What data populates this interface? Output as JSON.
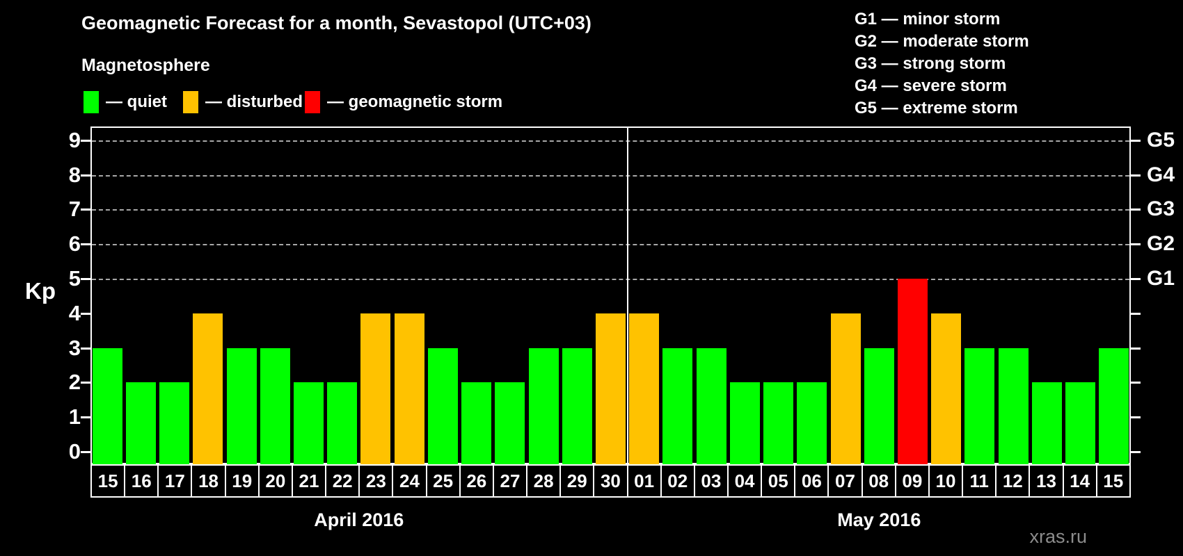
{
  "title": "Geomagnetic Forecast for a month, Sevastopol (UTC+03)",
  "subtitle": "Magnetosphere",
  "legend": {
    "items": [
      {
        "name": "quiet",
        "label": "— quiet",
        "color": "#00FF00"
      },
      {
        "name": "disturbed",
        "label": "— disturbed",
        "color": "#FFC200"
      },
      {
        "name": "geomagnetic-storm",
        "label": "— geomagnetic storm",
        "color": "#FF0000"
      }
    ]
  },
  "g_scale_legend": [
    "G1 — minor storm",
    "G2 — moderate storm",
    "G3 — strong storm",
    "G4 — severe storm",
    "G5 — extreme storm"
  ],
  "watermark": "xras.ru",
  "chart_data": {
    "type": "bar",
    "ylabel": "Kp",
    "ylim": [
      0,
      9
    ],
    "yticks": [
      0,
      1,
      2,
      3,
      4,
      5,
      6,
      7,
      8,
      9
    ],
    "grid_levels": [
      5,
      6,
      7,
      8,
      9
    ],
    "grid_style": "dashed",
    "right_axis": [
      {
        "kp": 5,
        "label": "G1"
      },
      {
        "kp": 6,
        "label": "G2"
      },
      {
        "kp": 7,
        "label": "G3"
      },
      {
        "kp": 8,
        "label": "G4"
      },
      {
        "kp": 9,
        "label": "G5"
      }
    ],
    "colors": {
      "quiet": "#00FF00",
      "disturbed": "#FFC200",
      "storm": "#FF0000"
    },
    "months": [
      {
        "label": "April 2016",
        "days": [
          {
            "date": "15",
            "kp": 3,
            "status": "quiet"
          },
          {
            "date": "16",
            "kp": 2,
            "status": "quiet"
          },
          {
            "date": "17",
            "kp": 2,
            "status": "quiet"
          },
          {
            "date": "18",
            "kp": 4,
            "status": "disturbed"
          },
          {
            "date": "19",
            "kp": 3,
            "status": "quiet"
          },
          {
            "date": "20",
            "kp": 3,
            "status": "quiet"
          },
          {
            "date": "21",
            "kp": 2,
            "status": "quiet"
          },
          {
            "date": "22",
            "kp": 2,
            "status": "quiet"
          },
          {
            "date": "23",
            "kp": 4,
            "status": "disturbed"
          },
          {
            "date": "24",
            "kp": 4,
            "status": "disturbed"
          },
          {
            "date": "25",
            "kp": 3,
            "status": "quiet"
          },
          {
            "date": "26",
            "kp": 2,
            "status": "quiet"
          },
          {
            "date": "27",
            "kp": 2,
            "status": "quiet"
          },
          {
            "date": "28",
            "kp": 3,
            "status": "quiet"
          },
          {
            "date": "29",
            "kp": 3,
            "status": "quiet"
          },
          {
            "date": "30",
            "kp": 4,
            "status": "disturbed"
          }
        ]
      },
      {
        "label": "May 2016",
        "days": [
          {
            "date": "01",
            "kp": 4,
            "status": "disturbed"
          },
          {
            "date": "02",
            "kp": 3,
            "status": "quiet"
          },
          {
            "date": "03",
            "kp": 3,
            "status": "quiet"
          },
          {
            "date": "04",
            "kp": 2,
            "status": "quiet"
          },
          {
            "date": "05",
            "kp": 2,
            "status": "quiet"
          },
          {
            "date": "06",
            "kp": 2,
            "status": "quiet"
          },
          {
            "date": "07",
            "kp": 4,
            "status": "disturbed"
          },
          {
            "date": "08",
            "kp": 3,
            "status": "quiet"
          },
          {
            "date": "09",
            "kp": 5,
            "status": "storm"
          },
          {
            "date": "10",
            "kp": 4,
            "status": "disturbed"
          },
          {
            "date": "11",
            "kp": 3,
            "status": "quiet"
          },
          {
            "date": "12",
            "kp": 3,
            "status": "quiet"
          },
          {
            "date": "13",
            "kp": 2,
            "status": "quiet"
          },
          {
            "date": "14",
            "kp": 2,
            "status": "quiet"
          },
          {
            "date": "15",
            "kp": 3,
            "status": "quiet"
          }
        ]
      }
    ]
  }
}
